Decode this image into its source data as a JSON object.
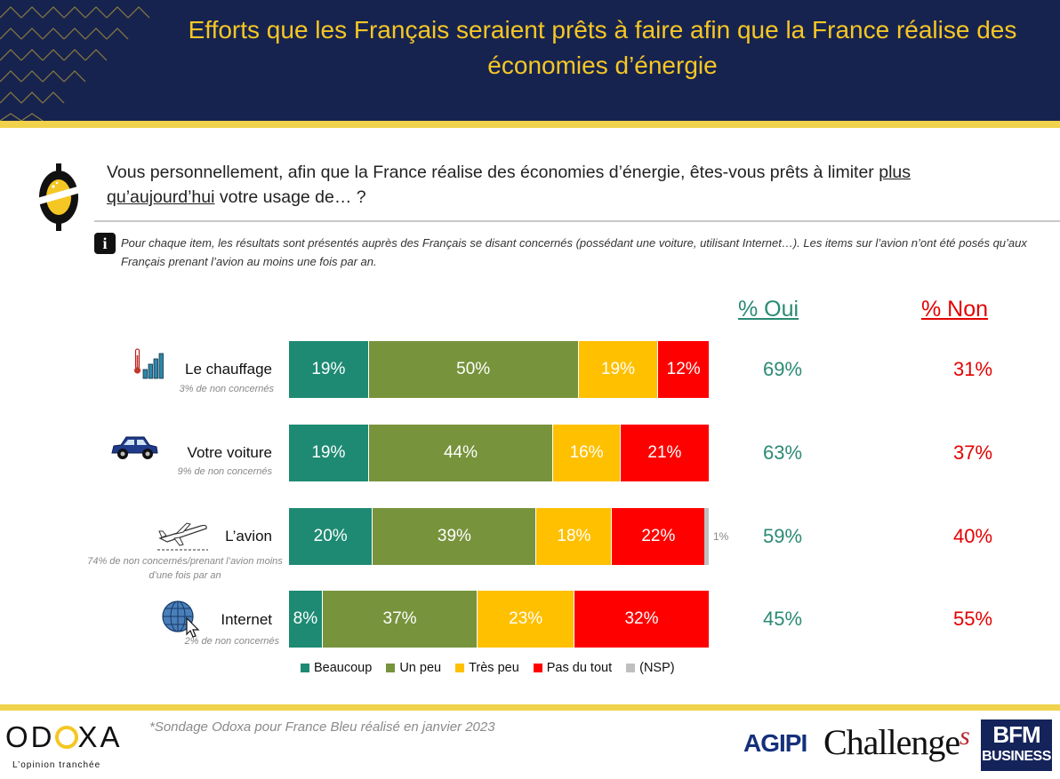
{
  "title": "Efforts que les Français seraient prêts à faire afin que la France réalise des économies d’énergie",
  "question": {
    "part1": "Vous personnellement, afin que la France réalise des économies d’énergie, êtes-vous prêts à limiter ",
    "underlined": "plus qu’aujourd’hui",
    "part2": " votre usage de… ?"
  },
  "note": "Pour chaque item, les résultats sont présentés auprès des Français se disant concernés (possédant une voiture, utilisant Internet…). Les items sur l’avion n’ont été posés qu’aux Français prenant l’avion au moins une fois par an.",
  "info_icon_label": "i",
  "columns": {
    "oui": "% Oui",
    "non": "% Non"
  },
  "rows": [
    {
      "label": "Le chauffage",
      "sub": "3% de non concernés",
      "icon": "thermometer-bars-icon",
      "oui": "69%",
      "non": "31%"
    },
    {
      "label": "Votre voiture",
      "sub": "9% de non concernés",
      "icon": "car-icon",
      "oui": "63%",
      "non": "37%"
    },
    {
      "label": "L’avion",
      "sub": "74% de non concernés/prenant l’avion moins d’une fois par an",
      "icon": "airplane-icon",
      "oui": "59%",
      "non": "40%"
    },
    {
      "label": "Internet",
      "sub": "2% de non concernés",
      "icon": "globe-cursor-icon",
      "oui": "45%",
      "non": "55%"
    }
  ],
  "chart_data": {
    "type": "bar",
    "orientation": "horizontal",
    "stacked": true,
    "categories": [
      "Le chauffage",
      "Votre voiture",
      "L’avion",
      "Internet"
    ],
    "series": [
      {
        "name": "Beaucoup",
        "values": [
          19,
          19,
          20,
          8
        ],
        "color": "#1e8a73"
      },
      {
        "name": "Un peu",
        "values": [
          50,
          44,
          39,
          37
        ],
        "color": "#77933c"
      },
      {
        "name": "Très peu",
        "values": [
          19,
          16,
          18,
          23
        ],
        "color": "#ffc000"
      },
      {
        "name": "Pas du tout",
        "values": [
          12,
          21,
          22,
          32
        ],
        "color": "#ff0000"
      },
      {
        "name": "(NSP)",
        "values": [
          0,
          0,
          1,
          0
        ],
        "color": "#bfbfbf"
      }
    ],
    "value_labels": [
      [
        "19%",
        "50%",
        "19%",
        "12%",
        ""
      ],
      [
        "19%",
        "44%",
        "16%",
        "21%",
        ""
      ],
      [
        "20%",
        "39%",
        "18%",
        "22%",
        "1%"
      ],
      [
        "8%",
        "37%",
        "23%",
        "32%",
        ""
      ]
    ],
    "legend_position": "bottom"
  },
  "footer": {
    "source": "*Sondage Odoxa pour France Bleu réalisé en janvier 2023",
    "odoxa_name_pre": "OD",
    "odoxa_name_post": "XA",
    "odoxa_tagline": "L’opinion tranchée",
    "partners": {
      "agipi": "AGIPI",
      "challenges_main": "Challenge",
      "challenges_s": "s",
      "bfm_line1": "BFM",
      "bfm_line2": "BUSINESS"
    }
  },
  "colors": {
    "navy": "#17234f",
    "gold": "#f5c724",
    "green": "#2a8a73",
    "red": "#e30000"
  }
}
